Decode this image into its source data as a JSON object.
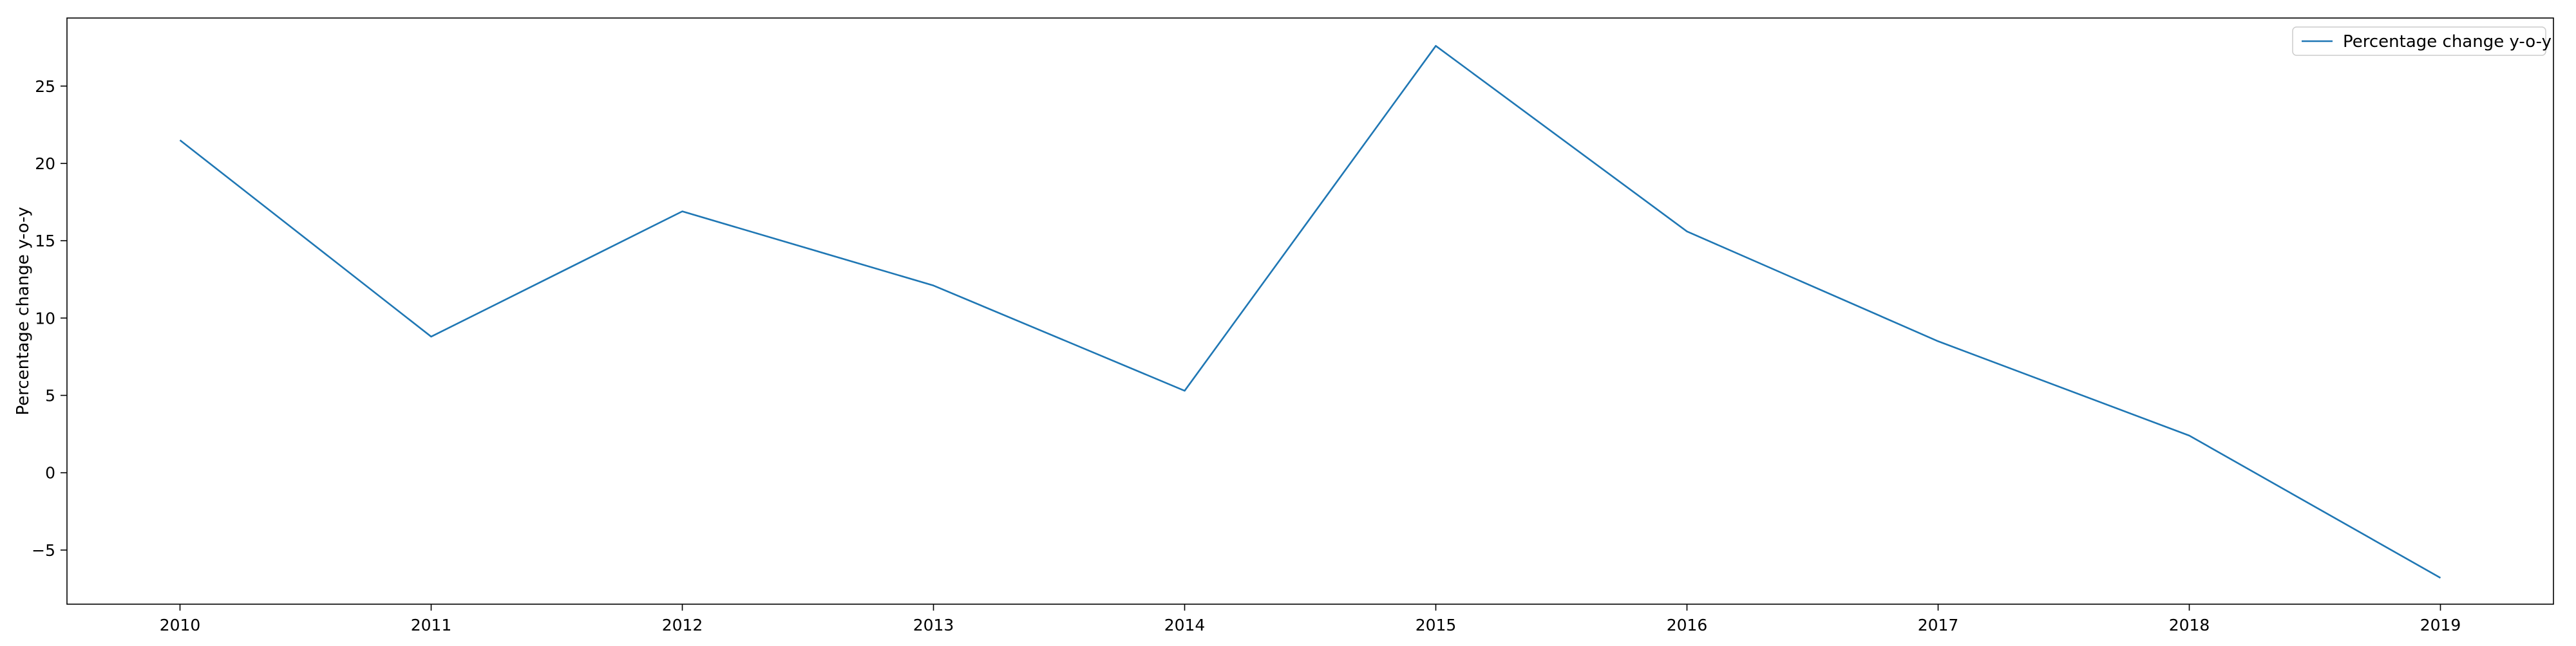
{
  "chart_data": {
    "type": "line",
    "x": [
      2010,
      2011,
      2012,
      2013,
      2014,
      2015,
      2016,
      2017,
      2018,
      2019
    ],
    "x_tick_labels": [
      "2010",
      "2011",
      "2012",
      "2013",
      "2014",
      "2015",
      "2016",
      "2017",
      "2018",
      "2019"
    ],
    "series": [
      {
        "name": "Percentage change y-o-y",
        "values": [
          21.5,
          8.8,
          16.9,
          12.1,
          5.3,
          27.6,
          15.6,
          8.5,
          2.4,
          -6.8
        ],
        "color": "#1f77b4"
      }
    ],
    "title": "",
    "xlabel": "",
    "ylabel": "Percentage change y-o-y",
    "xlim": [
      2009.55,
      2019.45
    ],
    "ylim": [
      -8.5,
      29.4
    ],
    "y_ticks": [
      -5,
      0,
      5,
      10,
      15,
      20,
      25
    ],
    "y_tick_labels": [
      "−5",
      "0",
      "5",
      "10",
      "15",
      "20",
      "25"
    ],
    "grid": false,
    "legend_position": "top-right"
  }
}
